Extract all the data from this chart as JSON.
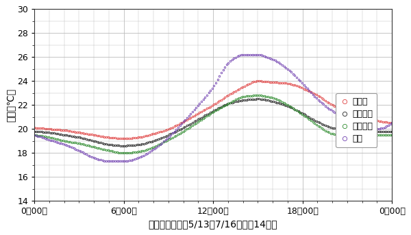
{
  "title_y": "気温（℃）",
  "title_x": "気温の日変化（5/13－7/16の晴天14日）",
  "ylabel_fontsize": 10,
  "xlabel_fontsize": 10,
  "ylim": [
    14,
    30
  ],
  "yticks": [
    14,
    16,
    18,
    20,
    22,
    24,
    26,
    28,
    30
  ],
  "xtick_labels": [
    "0時00分",
    "6時00分",
    "12時00分",
    "18時00分",
    "0時00分"
  ],
  "legend_labels": [
    "とろむ",
    "岬観測所",
    "自然の家",
    "高知"
  ],
  "series_colors": [
    "#e04040",
    "#202020",
    "#2e8b2e",
    "#7040b0"
  ],
  "background_color": "#ffffff",
  "grid_color": "#bbbbbb",
  "figsize": [
    6.0,
    3.43
  ],
  "dpi": 100
}
